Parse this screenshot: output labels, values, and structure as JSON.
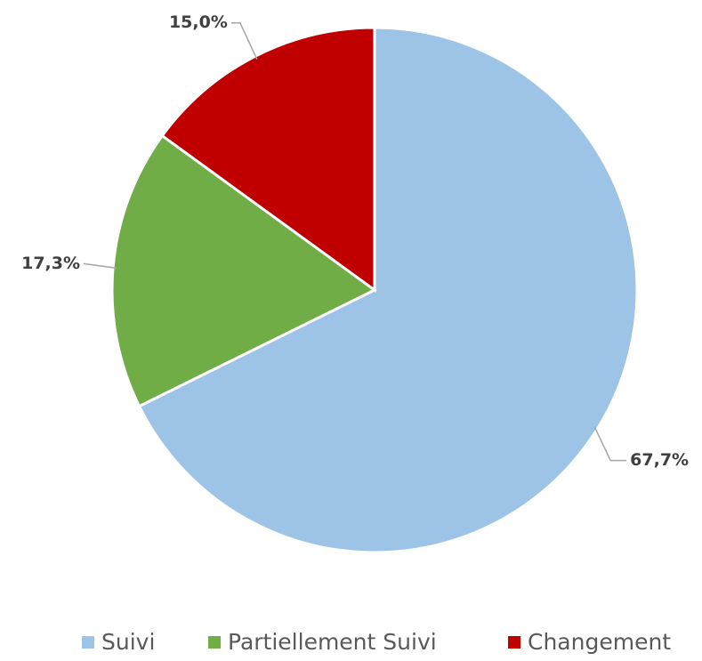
{
  "chart_data": {
    "type": "pie",
    "categories": [
      "Suivi",
      "Partiellement Suivi",
      "Changement"
    ],
    "values": [
      67.7,
      17.3,
      15.0
    ],
    "value_labels": [
      "67,7%",
      "17,3%",
      "15,0%"
    ],
    "colors": [
      "#9dc3e6",
      "#70ad47",
      "#c00000"
    ],
    "legend": "bottom"
  }
}
